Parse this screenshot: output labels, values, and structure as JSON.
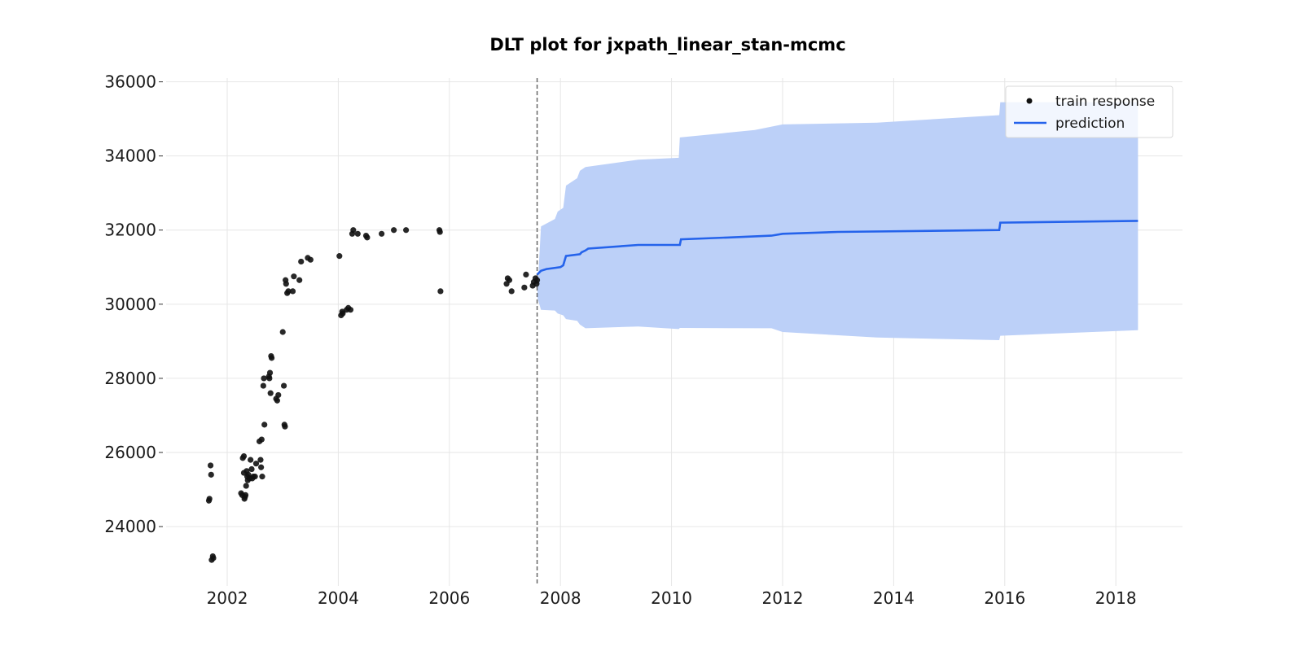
{
  "chart_data": {
    "type": "line",
    "title": "DLT plot for jxpath_linear_stan-mcmc",
    "xlabel": "",
    "ylabel": "",
    "xlim": [
      2000.9,
      2019.2
    ],
    "ylim": [
      22400,
      36100
    ],
    "x_ticks": [
      2002,
      2004,
      2006,
      2008,
      2010,
      2012,
      2014,
      2016,
      2018
    ],
    "y_ticks": [
      24000,
      26000,
      28000,
      30000,
      32000,
      34000,
      36000
    ],
    "grid": true,
    "legend_position": "top-right",
    "colors": {
      "points": "#111111",
      "prediction": "#2563eb",
      "band": "#bcd0f8",
      "split_line": "#666666"
    },
    "split_x": 2007.58,
    "train_response": {
      "name": "train response",
      "x": [
        2001.67,
        2001.68,
        2001.7,
        2001.71,
        2001.72,
        2001.74,
        2001.75,
        2002.25,
        2002.27,
        2002.28,
        2002.3,
        2002.3,
        2002.31,
        2002.32,
        2002.33,
        2002.34,
        2002.35,
        2002.36,
        2002.37,
        2002.38,
        2002.4,
        2002.42,
        2002.44,
        2002.45,
        2002.47,
        2002.5,
        2002.52,
        2002.58,
        2002.6,
        2002.61,
        2002.62,
        2002.63,
        2002.65,
        2002.66,
        2002.67,
        2002.75,
        2002.76,
        2002.77,
        2002.78,
        2002.79,
        2002.8,
        2002.88,
        2002.9,
        2002.92,
        2003.0,
        2003.02,
        2003.03,
        2003.04,
        2003.05,
        2003.06,
        2003.08,
        2003.1,
        2003.18,
        2003.2,
        2003.3,
        2003.33,
        2003.45,
        2003.5,
        2004.02,
        2004.05,
        2004.07,
        2004.08,
        2004.15,
        2004.18,
        2004.22,
        2004.25,
        2004.27,
        2004.35,
        2004.5,
        2004.52,
        2004.78,
        2005.0,
        2005.22,
        2005.82,
        2005.83,
        2005.84,
        2007.03,
        2007.05,
        2007.08,
        2007.12,
        2007.35,
        2007.38,
        2007.5,
        2007.52,
        2007.55,
        2007.57,
        2007.58
      ],
      "y": [
        24700,
        24750,
        25650,
        25400,
        23100,
        23200,
        23150,
        24900,
        24850,
        25850,
        25900,
        25450,
        24750,
        24800,
        24850,
        25100,
        25500,
        25350,
        25250,
        25400,
        25300,
        25800,
        25550,
        25300,
        25350,
        25350,
        25700,
        26300,
        25800,
        25600,
        26350,
        25350,
        27800,
        28000,
        26750,
        28050,
        28000,
        28150,
        27600,
        28600,
        28550,
        27450,
        27400,
        27550,
        29250,
        27800,
        26750,
        26700,
        30650,
        30550,
        30300,
        30350,
        30350,
        30750,
        30650,
        31150,
        31250,
        31200,
        31300,
        29700,
        29800,
        29750,
        29850,
        29900,
        29850,
        31900,
        32000,
        31900,
        31850,
        31800,
        31900,
        32000,
        32000,
        32000,
        31950,
        30350,
        30550,
        30700,
        30650,
        30350,
        30450,
        30800,
        30500,
        30600,
        30700,
        30550,
        30650
      ]
    },
    "prediction": {
      "name": "prediction",
      "x": [
        2007.58,
        2007.65,
        2007.75,
        2008.0,
        2008.05,
        2008.1,
        2008.35,
        2008.38,
        2008.45,
        2008.5,
        2009.4,
        2010.15,
        2010.17,
        2011.0,
        2011.8,
        2012.0,
        2013.0,
        2015.9,
        2015.92,
        2018.4
      ],
      "y": [
        30800,
        30900,
        30950,
        31000,
        31050,
        31300,
        31350,
        31400,
        31450,
        31500,
        31600,
        31600,
        31750,
        31800,
        31850,
        31900,
        31950,
        32000,
        32200,
        32250
      ]
    },
    "band_upper": {
      "x": [
        2007.58,
        2007.65,
        2007.9,
        2007.95,
        2008.05,
        2008.1,
        2008.3,
        2008.35,
        2008.45,
        2009.4,
        2010.13,
        2010.15,
        2011.5,
        2012.0,
        2013.7,
        2015.9,
        2015.92,
        2018.4
      ],
      "y": [
        30200,
        32100,
        32300,
        32500,
        32600,
        33200,
        33400,
        33600,
        33700,
        33900,
        33950,
        34500,
        34700,
        34850,
        34900,
        35100,
        35450,
        35450
      ]
    },
    "band_lower": {
      "x": [
        2007.58,
        2007.65,
        2007.9,
        2007.95,
        2008.05,
        2008.1,
        2008.3,
        2008.35,
        2008.45,
        2009.4,
        2010.13,
        2010.15,
        2011.8,
        2012.0,
        2013.7,
        2015.9,
        2015.92,
        2018.4
      ],
      "y": [
        30200,
        29850,
        29830,
        29750,
        29700,
        29600,
        29550,
        29450,
        29350,
        29400,
        29330,
        29360,
        29350,
        29250,
        29100,
        29030,
        29150,
        29300
      ]
    }
  }
}
